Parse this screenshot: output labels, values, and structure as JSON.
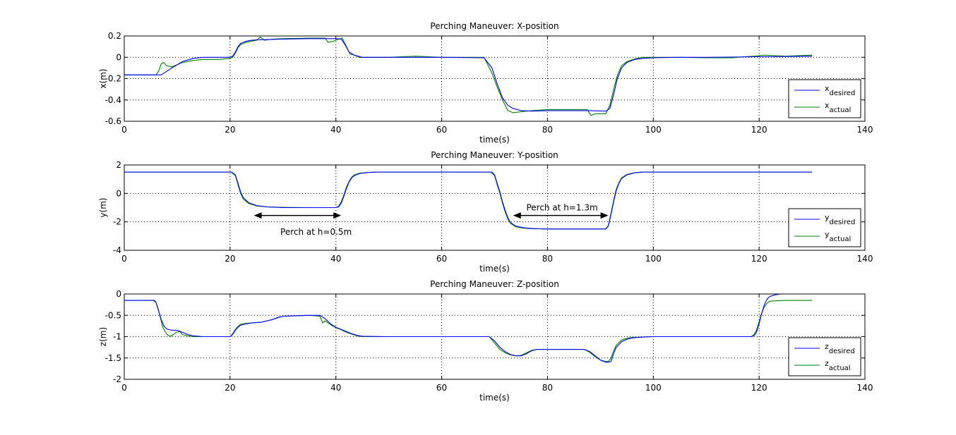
{
  "figure": {
    "colors": {
      "desired": "#0000ff",
      "actual": "#008000",
      "axes": "#000000",
      "grid": "#000000",
      "arrow": "#000000"
    }
  },
  "chart_data": [
    {
      "type": "line",
      "title": "Perching Maneuver: X-position",
      "xlabel": "time(s)",
      "ylabel": "x(m)",
      "xlim": [
        0,
        140
      ],
      "ylim": [
        -0.6,
        0.2
      ],
      "xticks": [
        0,
        20,
        40,
        60,
        80,
        100,
        120,
        140
      ],
      "xticklabels": [
        "0",
        "20",
        "40",
        "60",
        "80",
        "100",
        "120",
        "140"
      ],
      "yticks": [
        -0.6,
        -0.4,
        -0.2,
        0,
        0.2
      ],
      "yticklabels": [
        "-0.6",
        "-0.4",
        "-0.2",
        "0",
        "0.2"
      ],
      "grid": true,
      "legend": {
        "position": "bottom-right",
        "entries": [
          {
            "base": "x",
            "sub": "desired"
          },
          {
            "base": "x",
            "sub": "actual"
          }
        ]
      },
      "annotations": [],
      "series": [
        {
          "color": "#0000ff",
          "x": [
            0,
            7,
            9,
            11,
            13,
            15,
            20,
            20.5,
            21,
            21.5,
            22,
            23,
            24,
            26,
            30,
            35,
            40,
            41,
            41.7,
            42.5,
            43.5,
            45,
            50,
            60,
            68,
            69.5,
            70.5,
            71.5,
            72.5,
            73.5,
            75,
            77,
            80,
            85,
            88,
            91,
            91.8,
            92.5,
            93.2,
            94,
            95,
            96.5,
            98,
            100,
            105,
            110,
            120,
            130
          ],
          "y": [
            -0.165,
            -0.165,
            -0.1,
            -0.04,
            -0.01,
            0,
            0,
            0.01,
            0.05,
            0.1,
            0.13,
            0.15,
            0.16,
            0.165,
            0.17,
            0.175,
            0.175,
            0.17,
            0.12,
            0.05,
            0.02,
            0,
            0,
            0,
            -0.005,
            -0.1,
            -0.25,
            -0.38,
            -0.45,
            -0.48,
            -0.5,
            -0.505,
            -0.5,
            -0.5,
            -0.5,
            -0.505,
            -0.48,
            -0.35,
            -0.2,
            -0.1,
            -0.05,
            -0.02,
            -0.01,
            -0.005,
            0,
            0,
            0.005,
            0.01
          ]
        },
        {
          "color": "#008000",
          "x": [
            0,
            6,
            6.5,
            7,
            7.5,
            8,
            9,
            10,
            11,
            13,
            15,
            18,
            20,
            20.5,
            21,
            21.5,
            22,
            23,
            24,
            25,
            25.7,
            26.5,
            28,
            30,
            35,
            38,
            38.5,
            39.5,
            40.5,
            41.2,
            42,
            42.7,
            43.5,
            44.5,
            46,
            50,
            55,
            60,
            65,
            68,
            69.5,
            70.5,
            71.5,
            72.5,
            73.5,
            75,
            77,
            80,
            85,
            87.5,
            88.2,
            89,
            91,
            91.8,
            92.5,
            93.2,
            94,
            95,
            96.5,
            98,
            100,
            105,
            110,
            115,
            117,
            119,
            121,
            125,
            130
          ],
          "y": [
            -0.165,
            -0.165,
            -0.13,
            -0.06,
            -0.05,
            -0.08,
            -0.09,
            -0.07,
            -0.05,
            -0.03,
            -0.02,
            -0.02,
            -0.01,
            0,
            0.04,
            0.09,
            0.12,
            0.14,
            0.15,
            0.16,
            0.19,
            0.16,
            0.17,
            0.175,
            0.18,
            0.18,
            0.14,
            0.15,
            0.17,
            0.18,
            0.1,
            0.03,
            0.02,
            0,
            0,
            0,
            0.01,
            0,
            0,
            0,
            -0.15,
            -0.28,
            -0.4,
            -0.5,
            -0.52,
            -0.51,
            -0.5,
            -0.49,
            -0.49,
            -0.49,
            -0.545,
            -0.53,
            -0.53,
            -0.45,
            -0.3,
            -0.17,
            -0.08,
            -0.04,
            -0.015,
            0,
            0,
            0,
            -0.005,
            -0.005,
            0.005,
            0.01,
            0.02,
            0.01,
            0.02
          ]
        }
      ]
    },
    {
      "type": "line",
      "title": "Perching Maneuver: Y-position",
      "xlabel": "time(s)",
      "ylabel": "y(m)",
      "xlim": [
        0,
        140
      ],
      "ylim": [
        -4,
        2
      ],
      "xticks": [
        0,
        20,
        40,
        60,
        80,
        100,
        120,
        140
      ],
      "xticklabels": [
        "0",
        "20",
        "40",
        "60",
        "80",
        "100",
        "120",
        "140"
      ],
      "yticks": [
        -4,
        -2,
        0,
        2
      ],
      "yticklabels": [
        "-4",
        "-2",
        "0",
        "2"
      ],
      "grid": true,
      "legend": {
        "position": "bottom-right",
        "entries": [
          {
            "base": "y",
            "sub": "desired"
          },
          {
            "base": "y",
            "sub": "actual"
          }
        ]
      },
      "annotations": [
        {
          "text": "Perch at h=0.5m",
          "x1": 24.5,
          "x2": 41,
          "y": -1.55,
          "text_x": 29.5,
          "text_y": -2.7
        },
        {
          "text": "Perch at h=1.3m",
          "x1": 73.5,
          "x2": 91.5,
          "y": -1.55,
          "text_x": 76,
          "text_y": -1.0
        }
      ],
      "series": [
        {
          "color": "#0000ff",
          "x": [
            0,
            20.3,
            21,
            21.5,
            22,
            22.5,
            23.5,
            25,
            27,
            30,
            35,
            40,
            40.5,
            41,
            41.5,
            42,
            42.5,
            43,
            43.5,
            44.5,
            46,
            48,
            50,
            60,
            69.5,
            70,
            70.5,
            71,
            71.5,
            72,
            72.5,
            73,
            74,
            75.5,
            77,
            80,
            85,
            91,
            91.5,
            92,
            92.5,
            93,
            93.5,
            94,
            95,
            96.5,
            98,
            100,
            110,
            120,
            130
          ],
          "y": [
            1.5,
            1.5,
            1.3,
            0.7,
            0.1,
            -0.3,
            -0.65,
            -0.85,
            -0.95,
            -1,
            -1,
            -1,
            -0.95,
            -0.7,
            -0.2,
            0.35,
            0.8,
            1.1,
            1.25,
            1.4,
            1.47,
            1.5,
            1.5,
            1.5,
            1.5,
            1.3,
            0.7,
            0.1,
            -0.6,
            -1.2,
            -1.7,
            -2.05,
            -2.3,
            -2.42,
            -2.47,
            -2.5,
            -2.5,
            -2.5,
            -2.3,
            -1.5,
            -0.6,
            0.2,
            0.7,
            1.05,
            1.3,
            1.45,
            1.5,
            1.5,
            1.5,
            1.5,
            1.5
          ]
        },
        {
          "color": "#008000",
          "x": [
            0,
            20.2,
            21,
            21.5,
            22,
            22.5,
            23.5,
            25,
            27,
            30,
            35,
            40,
            40.5,
            41,
            41.5,
            42,
            42.5,
            43,
            43.5,
            44.5,
            46,
            48,
            50,
            60,
            69.3,
            70,
            70.5,
            71,
            71.5,
            72,
            72.5,
            73,
            74,
            75.5,
            77,
            80,
            85,
            91,
            91.5,
            92,
            92.5,
            93,
            93.5,
            94,
            95,
            96.5,
            98,
            100,
            110,
            120,
            130
          ],
          "y": [
            1.5,
            1.5,
            1.25,
            0.6,
            0,
            -0.4,
            -0.7,
            -0.88,
            -0.95,
            -0.98,
            -1,
            -1,
            -0.9,
            -0.6,
            -0.1,
            0.45,
            0.85,
            1.15,
            1.3,
            1.42,
            1.48,
            1.5,
            1.5,
            1.5,
            1.5,
            1.25,
            0.6,
            0,
            -0.7,
            -1.3,
            -1.8,
            -2.1,
            -2.35,
            -2.45,
            -2.48,
            -2.5,
            -2.5,
            -2.5,
            -2.25,
            -1.4,
            -0.5,
            0.3,
            0.75,
            1.1,
            1.33,
            1.46,
            1.5,
            1.5,
            1.5,
            1.5,
            1.5
          ]
        }
      ]
    },
    {
      "type": "line",
      "title": "Perching Maneuver: Z-position",
      "xlabel": "time(s)",
      "ylabel": "z(m)",
      "xlim": [
        0,
        140
      ],
      "ylim": [
        -2,
        0
      ],
      "xticks": [
        0,
        20,
        40,
        60,
        80,
        100,
        120,
        140
      ],
      "xticklabels": [
        "0",
        "20",
        "40",
        "60",
        "80",
        "100",
        "120",
        "140"
      ],
      "yticks": [
        -2,
        -1.5,
        -1,
        -0.5,
        0
      ],
      "yticklabels": [
        "-2",
        "-1.5",
        "-1",
        "-0.5",
        "0"
      ],
      "grid": true,
      "legend": {
        "position": "bottom-right",
        "entries": [
          {
            "base": "z",
            "sub": "desired"
          },
          {
            "base": "z",
            "sub": "actual"
          }
        ]
      },
      "annotations": [],
      "series": [
        {
          "color": "#0000ff",
          "x": [
            0,
            5.5,
            6,
            6.5,
            7,
            7.5,
            8,
            9,
            10,
            11,
            12,
            13,
            15,
            20,
            20.5,
            21,
            21.5,
            22,
            23,
            24,
            26,
            28,
            29,
            30,
            32,
            35,
            37,
            38,
            39,
            40,
            41,
            42,
            43,
            44,
            45,
            50,
            55,
            60,
            65,
            69,
            70,
            71,
            72,
            73,
            74,
            75,
            76,
            77,
            78,
            80,
            85,
            87,
            88,
            89,
            90,
            91,
            91.5,
            92,
            92.5,
            93,
            94,
            95,
            96,
            98,
            100,
            110,
            118.5,
            119,
            119.5,
            120,
            120.5,
            121,
            121.5,
            122,
            123,
            124,
            125,
            126
          ],
          "y": [
            -0.15,
            -0.15,
            -0.2,
            -0.4,
            -0.6,
            -0.75,
            -0.82,
            -0.85,
            -0.85,
            -0.9,
            -0.95,
            -0.98,
            -1,
            -1,
            -0.95,
            -0.85,
            -0.78,
            -0.73,
            -0.7,
            -0.68,
            -0.66,
            -0.6,
            -0.55,
            -0.52,
            -0.51,
            -0.5,
            -0.5,
            -0.58,
            -0.7,
            -0.78,
            -0.83,
            -0.88,
            -0.93,
            -0.97,
            -0.99,
            -1,
            -1,
            -1,
            -1,
            -1,
            -1.1,
            -1.25,
            -1.35,
            -1.42,
            -1.45,
            -1.45,
            -1.4,
            -1.33,
            -1.3,
            -1.3,
            -1.3,
            -1.3,
            -1.35,
            -1.45,
            -1.55,
            -1.6,
            -1.6,
            -1.58,
            -1.4,
            -1.25,
            -1.12,
            -1.06,
            -1.03,
            -1.01,
            -1,
            -1,
            -1,
            -0.98,
            -0.9,
            -0.7,
            -0.45,
            -0.25,
            -0.12,
            -0.06,
            -0.02,
            0,
            0,
            0
          ]
        },
        {
          "color": "#008000",
          "x": [
            0,
            5.8,
            6.3,
            6.8,
            7.3,
            7.8,
            8.3,
            8.8,
            9.3,
            9.8,
            10.5,
            11,
            12,
            13,
            15,
            20,
            20.5,
            21,
            21.5,
            22,
            23,
            24,
            26,
            28,
            29,
            30,
            32,
            35,
            37,
            37.5,
            38,
            39,
            40,
            41,
            42,
            43,
            44,
            45,
            50,
            55,
            60,
            65,
            69,
            70,
            71,
            72,
            73,
            74,
            75,
            76,
            77,
            78,
            80,
            85,
            87,
            88,
            89,
            90,
            91,
            91.5,
            92,
            92.5,
            93,
            94,
            95,
            96,
            98,
            100,
            110,
            118.5,
            119,
            119.5,
            120,
            120.5,
            121,
            121.5,
            122,
            123,
            125,
            130
          ],
          "y": [
            -0.15,
            -0.15,
            -0.3,
            -0.55,
            -0.78,
            -0.9,
            -0.97,
            -0.99,
            -0.95,
            -0.9,
            -0.88,
            -0.95,
            -0.98,
            -1,
            -1,
            -1,
            -0.93,
            -0.83,
            -0.76,
            -0.71,
            -0.69,
            -0.68,
            -0.66,
            -0.6,
            -0.56,
            -0.52,
            -0.51,
            -0.5,
            -0.52,
            -0.68,
            -0.63,
            -0.72,
            -0.79,
            -0.84,
            -0.9,
            -0.94,
            -0.98,
            -1,
            -1,
            -1,
            -1,
            -1,
            -1,
            -1.15,
            -1.3,
            -1.38,
            -1.43,
            -1.45,
            -1.44,
            -1.38,
            -1.32,
            -1.3,
            -1.3,
            -1.3,
            -1.3,
            -1.37,
            -1.47,
            -1.55,
            -1.58,
            -1.58,
            -1.5,
            -1.33,
            -1.2,
            -1.08,
            -1.04,
            -1.02,
            -1.01,
            -1,
            -1,
            -1,
            -0.96,
            -0.85,
            -0.65,
            -0.45,
            -0.3,
            -0.22,
            -0.17,
            -0.16,
            -0.15,
            -0.15
          ]
        }
      ]
    }
  ]
}
